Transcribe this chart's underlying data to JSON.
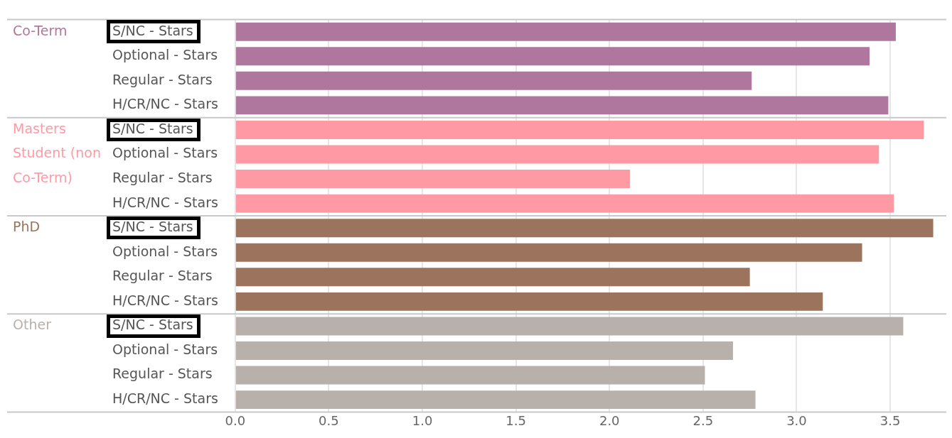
{
  "chart_data": {
    "type": "bar",
    "orientation": "horizontal",
    "categories": [
      "S/NC - Stars",
      "Optional - Stars",
      "Regular - Stars",
      "H/CR/NC - Stars",
      "S/NC - Stars",
      "Optional - Stars",
      "Regular - Stars",
      "H/CR/NC - Stars",
      "S/NC - Stars",
      "Optional - Stars",
      "Regular - Stars",
      "H/CR/NC - Stars",
      "S/NC - Stars",
      "Optional - Stars",
      "Regular - Stars",
      "H/CR/NC - Stars"
    ],
    "series": [
      {
        "name": "Co-Term",
        "color": "#b0779e",
        "values": [
          3.53,
          3.39,
          2.76,
          3.49,
          null,
          null,
          null,
          null,
          null,
          null,
          null,
          null,
          null,
          null,
          null,
          null
        ]
      },
      {
        "name": "Masters Student (non Co-Term)",
        "color": "#ff9aa5",
        "values": [
          null,
          null,
          null,
          null,
          3.68,
          3.44,
          2.11,
          3.52,
          null,
          null,
          null,
          null,
          null,
          null,
          null,
          null
        ]
      },
      {
        "name": "PhD",
        "color": "#9c735c",
        "values": [
          null,
          null,
          null,
          null,
          null,
          null,
          null,
          null,
          3.73,
          3.35,
          2.75,
          3.14,
          null,
          null,
          null,
          null
        ]
      },
      {
        "name": "Other",
        "color": "#b8b0ab",
        "values": [
          null,
          null,
          null,
          null,
          null,
          null,
          null,
          null,
          null,
          null,
          null,
          null,
          3.57,
          2.66,
          2.51,
          2.78
        ]
      }
    ],
    "xlim": [
      0,
      3.8
    ],
    "xticks": [
      {
        "value": 0,
        "label": "0.0"
      },
      {
        "value": 0.5,
        "label": "0.5"
      },
      {
        "value": 1,
        "label": "1.0"
      },
      {
        "value": 1.5,
        "label": "1.5"
      },
      {
        "value": 2,
        "label": "2.0"
      },
      {
        "value": 2.5,
        "label": "2.5"
      },
      {
        "value": 3,
        "label": "3.0"
      },
      {
        "value": 3.5,
        "label": "3.5"
      }
    ],
    "grid": "x",
    "legend": false
  }
}
